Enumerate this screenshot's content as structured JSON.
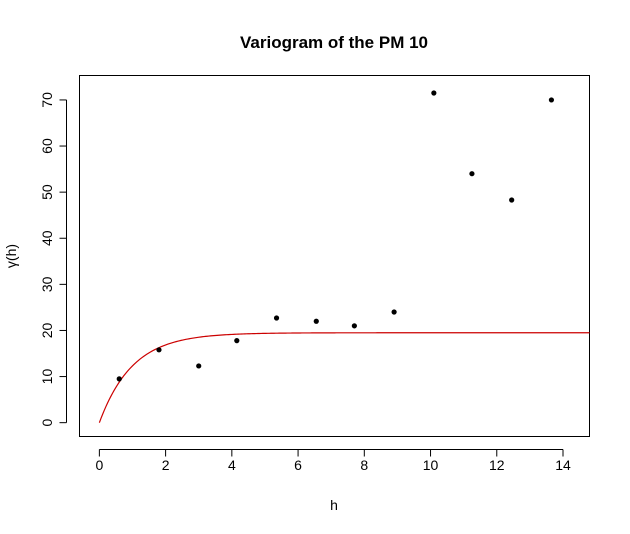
{
  "chart_data": {
    "type": "scatter",
    "title": "Variogram of the PM 10",
    "xlabel": "h",
    "ylabel": "γ(h)",
    "xlim": [
      -0.6,
      14.8
    ],
    "ylim": [
      -3.0,
      75.3
    ],
    "x_ticks": [
      0,
      2,
      4,
      6,
      8,
      10,
      12,
      14
    ],
    "y_ticks": [
      0,
      10,
      20,
      30,
      40,
      50,
      60,
      70
    ],
    "grid": false,
    "points": {
      "x": [
        0.6,
        1.8,
        3.0,
        4.15,
        5.35,
        6.55,
        7.7,
        8.9,
        10.1,
        11.25,
        12.45,
        13.65
      ],
      "y": [
        9.5,
        15.8,
        12.3,
        17.8,
        22.7,
        22.0,
        21.0,
        24.0,
        71.5,
        54.0,
        48.3,
        70.0
      ],
      "color": "#000000"
    },
    "fitted_model": {
      "type": "exponential",
      "nugget": 0,
      "sill": 19.5,
      "range": 1.0,
      "x_max": 14.8,
      "color": "#cc0000"
    }
  }
}
